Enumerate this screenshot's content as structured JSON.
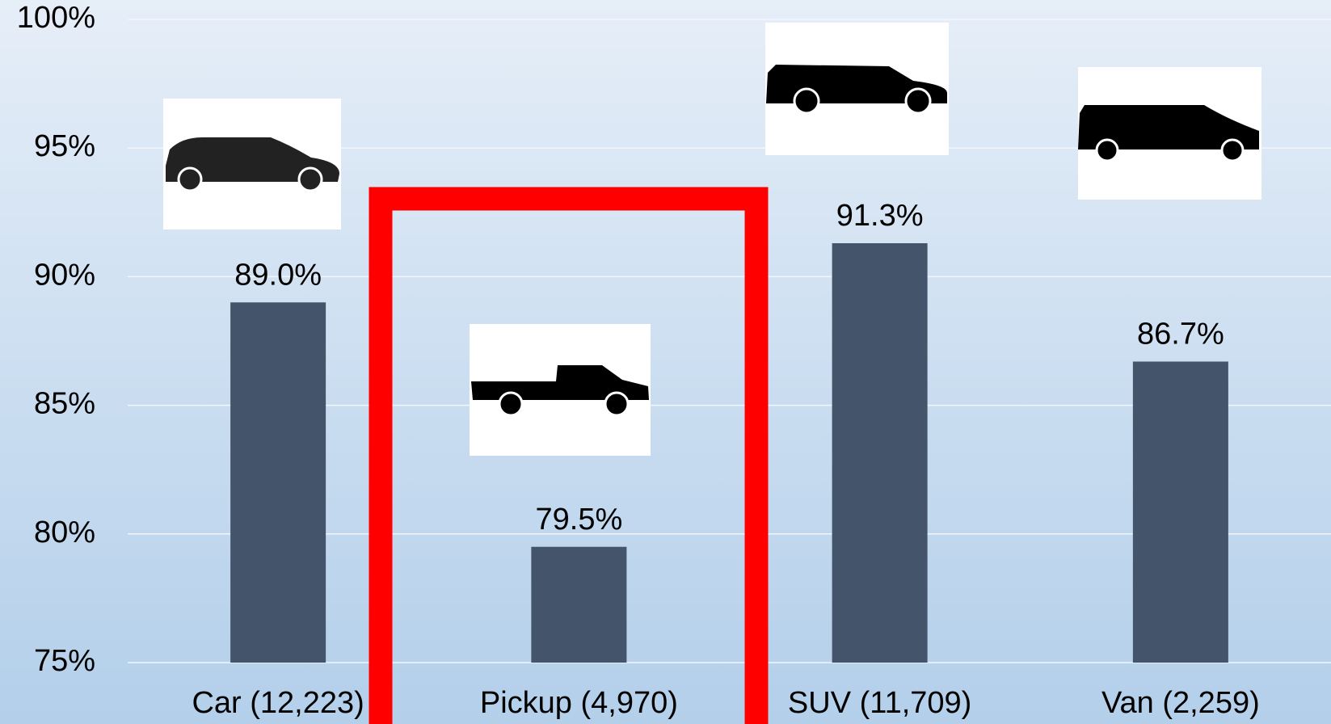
{
  "chart_data": {
    "type": "bar",
    "categories": [
      "Car (12,223)",
      "Pickup (4,970)",
      "SUV (11,709)",
      "Van (2,259)"
    ],
    "values": [
      89.0,
      79.5,
      91.3,
      86.7
    ],
    "value_labels": [
      "89.0%",
      "79.5%",
      "91.3%",
      "86.7%"
    ],
    "color": "#44546a",
    "ylim": [
      75,
      100
    ],
    "yticks": [
      {
        "value": 75,
        "label": "75%"
      },
      {
        "value": 80,
        "label": "80%"
      },
      {
        "value": 85,
        "label": "85%"
      },
      {
        "value": 90,
        "label": "90%"
      },
      {
        "value": 95,
        "label": "95%"
      },
      {
        "value": 100,
        "label": "100%"
      }
    ],
    "grid": true
  }
}
